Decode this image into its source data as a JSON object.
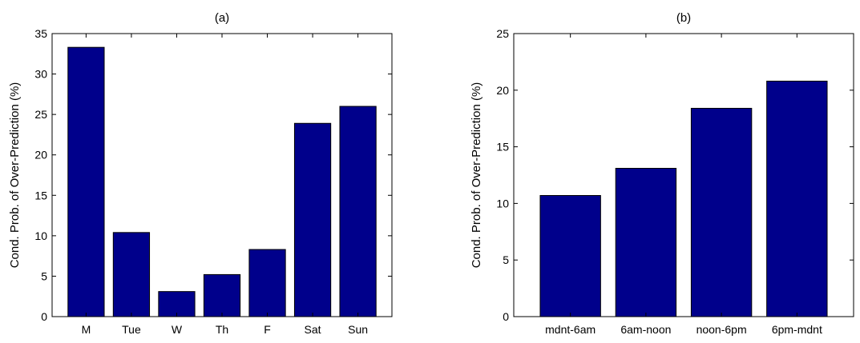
{
  "chart_data": [
    {
      "type": "bar",
      "title": "(a)",
      "xlabel": "",
      "ylabel": "Cond. Prob. of Over-Prediction (%)",
      "categories": [
        "M",
        "Tue",
        "W",
        "Th",
        "F",
        "Sat",
        "Sun"
      ],
      "values": [
        33.3,
        10.4,
        3.1,
        5.2,
        8.3,
        23.9,
        26.0
      ],
      "ylim": [
        0,
        35
      ],
      "yticks": [
        0,
        5,
        10,
        15,
        20,
        25,
        30,
        35
      ],
      "bar_color": "#00008B",
      "grid": false
    },
    {
      "type": "bar",
      "title": "(b)",
      "xlabel": "",
      "ylabel": "Cond. Prob. of Over-Prediction (%)",
      "categories": [
        "mdnt-6am",
        "6am-noon",
        "noon-6pm",
        "6pm-mdnt"
      ],
      "values": [
        10.7,
        13.1,
        18.4,
        20.8
      ],
      "ylim": [
        0,
        25
      ],
      "yticks": [
        0,
        5,
        10,
        15,
        20,
        25
      ],
      "bar_color": "#00008B",
      "grid": false
    }
  ]
}
